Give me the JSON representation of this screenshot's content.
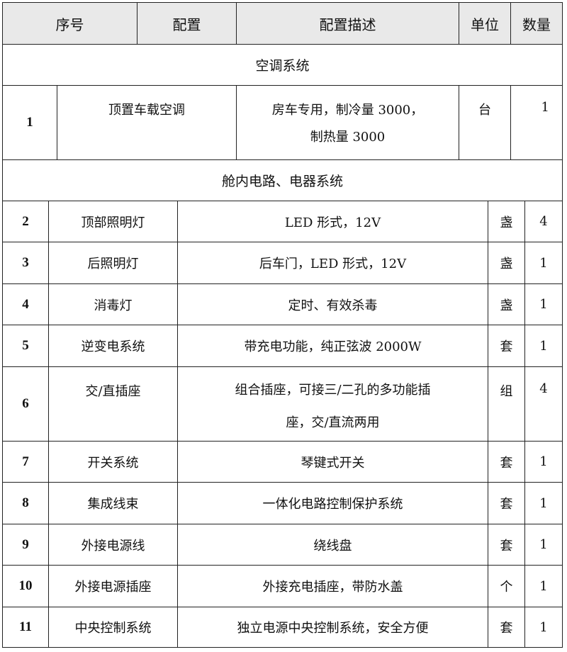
{
  "header": [
    "序号",
    "配置",
    "配置描述",
    "单位",
    "数量"
  ],
  "sections": [
    {
      "title": "空调系统"
    },
    {
      "title": "舱内电路、电器系统"
    }
  ],
  "row1": {
    "no": "1",
    "name": "顶置车载空调",
    "desc_line1": "房车专用，制冷量 3000，",
    "desc_line2": "制热量 3000",
    "unit": "台",
    "qty": "1"
  },
  "rows": [
    {
      "no": "2",
      "name": "顶部照明灯",
      "desc": "LED 形式，12V",
      "unit": "盏",
      "qty": "4"
    },
    {
      "no": "3",
      "name": "后照明灯",
      "desc": "后车门，LED 形式，12V",
      "unit": "盏",
      "qty": "1"
    },
    {
      "no": "4",
      "name": "消毒灯",
      "desc": "定时、有效杀毒",
      "unit": "盏",
      "qty": "1"
    },
    {
      "no": "5",
      "name": "逆变电系统",
      "desc": "带充电功能，纯正弦波 2000W",
      "unit": "套",
      "qty": "1"
    },
    {
      "no": "6",
      "name": "交/直插座",
      "desc_line1": "组合插座，可接三/二孔的多功能插",
      "desc_line2": "座，交/直流两用",
      "unit": "组",
      "qty": "4"
    },
    {
      "no": "7",
      "name": "开关系统",
      "desc": "琴键式开关",
      "unit": "套",
      "qty": "1"
    },
    {
      "no": "8",
      "name": "集成线束",
      "desc": "一体化电路控制保护系统",
      "unit": "套",
      "qty": "1"
    },
    {
      "no": "9",
      "name": "外接电源线",
      "desc": "绕线盘",
      "unit": "套",
      "qty": "1"
    },
    {
      "no": "10",
      "name": "外接电源插座",
      "desc": "外接充电插座，带防水盖",
      "unit": "个",
      "qty": "1"
    },
    {
      "no": "11",
      "name": "中央控制系统",
      "desc": "独立电源中央控制系统，安全方便",
      "unit": "套",
      "qty": "1"
    }
  ]
}
